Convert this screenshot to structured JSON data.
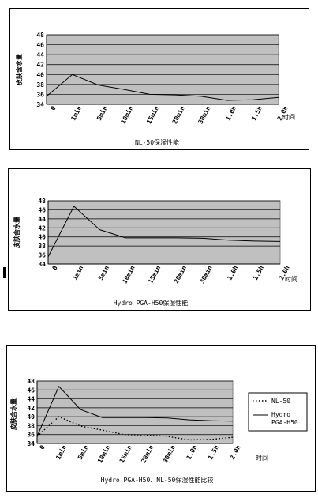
{
  "chart_data": [
    {
      "type": "line",
      "title": "NL-50保湿性能",
      "ylabel": "皮肤含水量",
      "xlabel": "时间",
      "categories": [
        "0",
        "1min",
        "5min",
        "10min",
        "15min",
        "20min",
        "30min",
        "1.0h",
        "1.5h",
        "2.0h"
      ],
      "ylim": [
        34,
        48
      ],
      "yticks": [
        34,
        36,
        38,
        40,
        42,
        44,
        46,
        48
      ],
      "grid": true,
      "series": [
        {
          "values": [
            35.6,
            40.0,
            37.9,
            37.0,
            36.0,
            35.9,
            35.6,
            34.8,
            34.9,
            35.4
          ]
        }
      ]
    },
    {
      "type": "line",
      "title": "Hydro PGA-H50保湿性能",
      "ylabel": "皮肤含水量",
      "xlabel": "时间",
      "categories": [
        "0",
        "1min",
        "5min",
        "10min",
        "15min",
        "20min",
        "30min",
        "1.0h",
        "1.5h",
        "2.0h"
      ],
      "ylim": [
        34,
        48
      ],
      "yticks": [
        34,
        36,
        38,
        40,
        42,
        44,
        46,
        48
      ],
      "grid": true,
      "series": [
        {
          "values": [
            35.6,
            46.8,
            41.6,
            39.8,
            39.8,
            39.8,
            39.7,
            39.3,
            39.1,
            39.0
          ]
        }
      ]
    },
    {
      "type": "line",
      "title": "Hydro PGA-H50、NL-50保湿性能比较",
      "ylabel": "皮肤含水量",
      "xlabel": "时间",
      "categories": [
        "0",
        "1min",
        "5min",
        "10min",
        "15min",
        "20min",
        "30min",
        "1.0h",
        "1.5h",
        "2.0h"
      ],
      "ylim": [
        34,
        48
      ],
      "yticks": [
        34,
        36,
        38,
        40,
        42,
        44,
        46,
        48
      ],
      "grid": true,
      "legend": "right",
      "series": [
        {
          "name": "NL-50",
          "style": "dotted",
          "values": [
            35.6,
            40.0,
            37.9,
            37.0,
            36.0,
            35.9,
            35.6,
            34.8,
            34.9,
            35.4
          ]
        },
        {
          "name": "Hydro PGA-H50",
          "style": "solid",
          "values": [
            35.6,
            46.8,
            41.6,
            39.8,
            39.8,
            39.8,
            39.7,
            39.3,
            39.1,
            39.0
          ]
        }
      ]
    }
  ]
}
